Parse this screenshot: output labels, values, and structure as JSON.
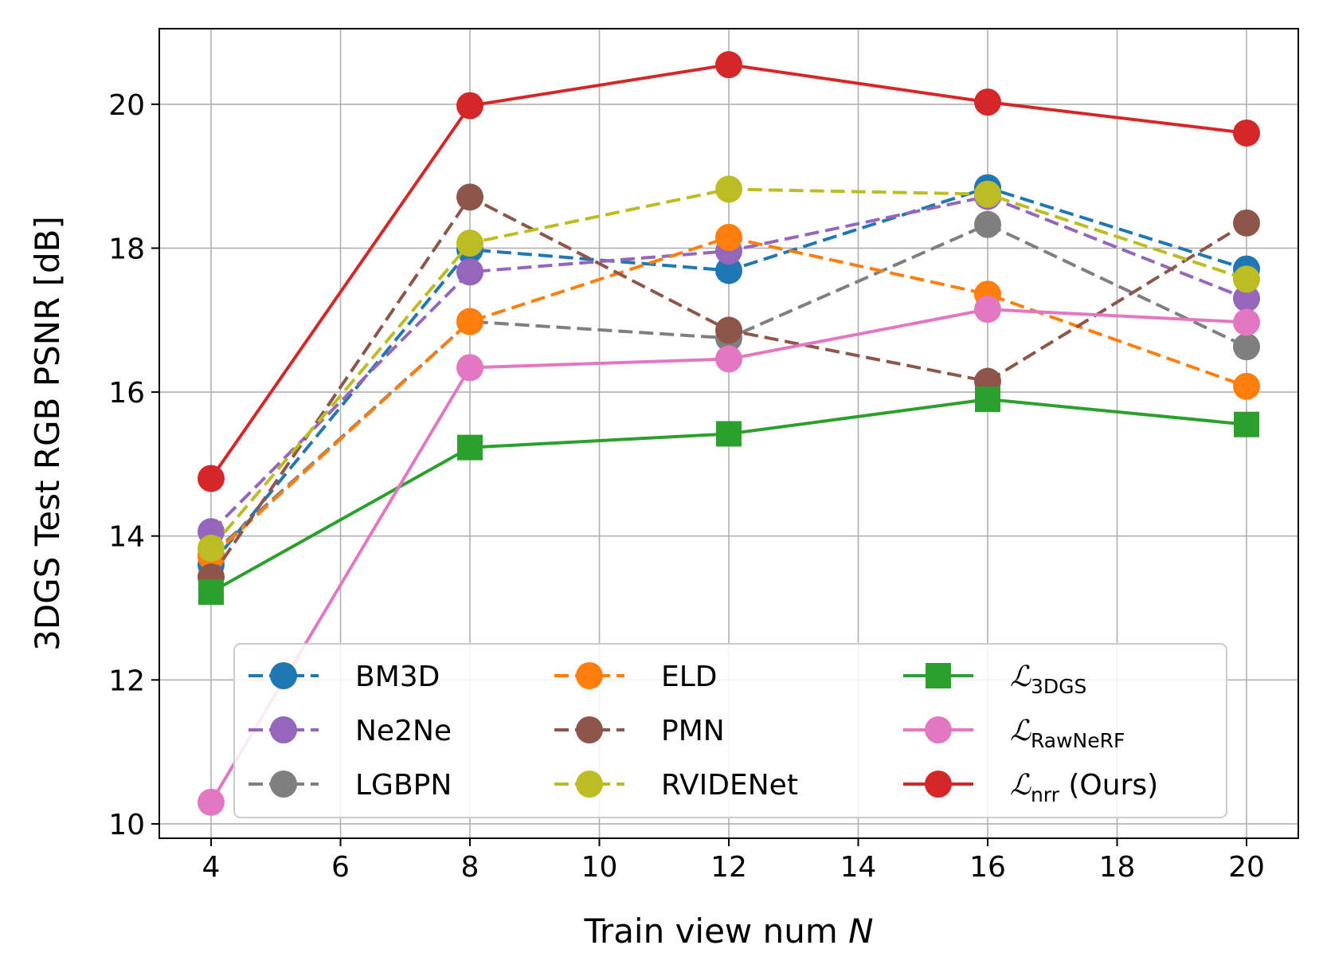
{
  "chart_data": {
    "type": "line",
    "title": "",
    "xlabel": "Train view num",
    "xlabel_var": "N",
    "ylabel": "3DGS Test RGB PSNR [dB]",
    "xlim": [
      3.2,
      20.8
    ],
    "ylim": [
      9.8,
      21.05
    ],
    "xticks": [
      4,
      6,
      8,
      10,
      12,
      14,
      16,
      18,
      20
    ],
    "yticks": [
      10,
      12,
      14,
      16,
      18,
      20
    ],
    "x": [
      4,
      8,
      12,
      16,
      20
    ],
    "grid": true,
    "legend_position": "lower-center",
    "series": [
      {
        "name": "BM3D",
        "name_parts": [
          "BM3D"
        ],
        "color": "#1f77b4",
        "dash": "dashed",
        "marker": "circle",
        "values": [
          13.6,
          17.98,
          17.69,
          18.84,
          17.71
        ]
      },
      {
        "name": "Ne2Ne",
        "name_parts": [
          "Ne2Ne"
        ],
        "color": "#9467bd",
        "dash": "dashed",
        "marker": "circle",
        "values": [
          14.06,
          17.67,
          17.96,
          18.72,
          17.3
        ]
      },
      {
        "name": "LGBPN",
        "name_parts": [
          "LGBPN"
        ],
        "color": "#7f7f7f",
        "dash": "dashed",
        "marker": "circle",
        "values": [
          13.74,
          16.98,
          16.75,
          18.33,
          16.63
        ]
      },
      {
        "name": "ELD",
        "name_parts": [
          "ELD"
        ],
        "color": "#ff7f0e",
        "dash": "dashed",
        "marker": "circle",
        "values": [
          13.71,
          16.98,
          18.15,
          17.36,
          16.08
        ]
      },
      {
        "name": "PMN",
        "name_parts": [
          "PMN"
        ],
        "color": "#8c564b",
        "dash": "dashed",
        "marker": "circle",
        "values": [
          13.43,
          18.71,
          16.86,
          16.15,
          18.35
        ]
      },
      {
        "name": "RVIDENet",
        "name_parts": [
          "RVIDENet"
        ],
        "color": "#bcbd22",
        "dash": "dashed",
        "marker": "circle",
        "values": [
          13.83,
          18.07,
          18.82,
          18.75,
          17.57
        ]
      },
      {
        "name": "L3DGS",
        "name_parts": [
          "ℒ",
          "3DGS",
          ""
        ],
        "color": "#2ca02c",
        "dash": "solid",
        "marker": "square",
        "values": [
          13.22,
          15.23,
          15.42,
          15.9,
          15.55
        ]
      },
      {
        "name": "LRawNeRF",
        "name_parts": [
          "ℒ",
          "RawNeRF",
          ""
        ],
        "color": "#e377c2",
        "dash": "solid",
        "marker": "circle",
        "values": [
          10.3,
          16.34,
          16.46,
          17.15,
          16.97
        ]
      },
      {
        "name": "Lnrr (Ours)",
        "name_parts": [
          "ℒ",
          "nrr",
          " (Ours)"
        ],
        "color": "#d62728",
        "dash": "solid",
        "marker": "circle",
        "values": [
          14.8,
          19.98,
          20.55,
          20.03,
          19.6
        ]
      }
    ]
  }
}
